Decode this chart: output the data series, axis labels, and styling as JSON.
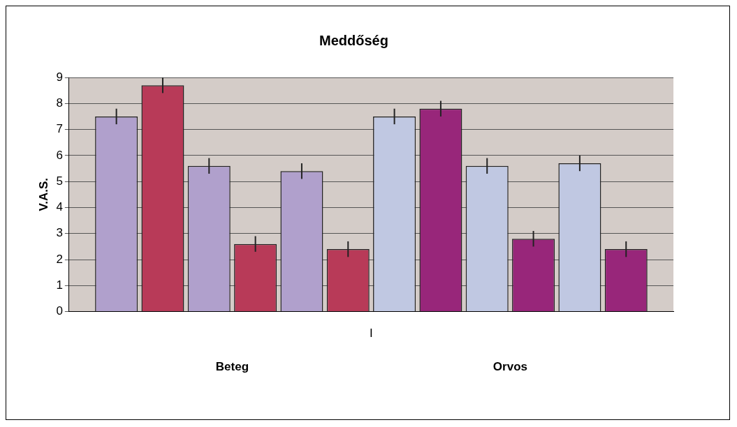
{
  "chart_data": {
    "type": "bar",
    "title": "Meddőség",
    "ylabel": "V.A.S.",
    "categories": [
      "I"
    ],
    "series": [
      {
        "color": "#b0a0cc",
        "values": [
          7.5
        ],
        "errors": [
          0.3
        ]
      },
      {
        "color": "#b83a58",
        "values": [
          8.7
        ],
        "errors": [
          0.3
        ]
      },
      {
        "color": "#b0a0cc",
        "values": [
          5.6
        ],
        "errors": [
          0.3
        ]
      },
      {
        "color": "#b83a58",
        "values": [
          2.6
        ],
        "errors": [
          0.3
        ]
      },
      {
        "color": "#b0a0cc",
        "values": [
          5.4
        ],
        "errors": [
          0.3
        ]
      },
      {
        "color": "#b83a58",
        "values": [
          2.4
        ],
        "errors": [
          0.3
        ]
      },
      {
        "color": "#c0c8e2",
        "values": [
          7.5
        ],
        "errors": [
          0.3
        ]
      },
      {
        "color": "#98267a",
        "values": [
          7.8
        ],
        "errors": [
          0.3
        ]
      },
      {
        "color": "#c0c8e2",
        "values": [
          5.6
        ],
        "errors": [
          0.3
        ]
      },
      {
        "color": "#98267a",
        "values": [
          2.8
        ],
        "errors": [
          0.3
        ]
      },
      {
        "color": "#c0c8e2",
        "values": [
          5.7
        ],
        "errors": [
          0.3
        ]
      },
      {
        "color": "#98267a",
        "values": [
          2.4
        ],
        "errors": [
          0.3
        ]
      }
    ],
    "ylim": [
      0,
      9
    ],
    "yticks": [
      0,
      1,
      2,
      3,
      4,
      5,
      6,
      7,
      8,
      9
    ],
    "grid": "y",
    "legend": false,
    "annotations": [
      "Beteg",
      "Orvos"
    ]
  }
}
